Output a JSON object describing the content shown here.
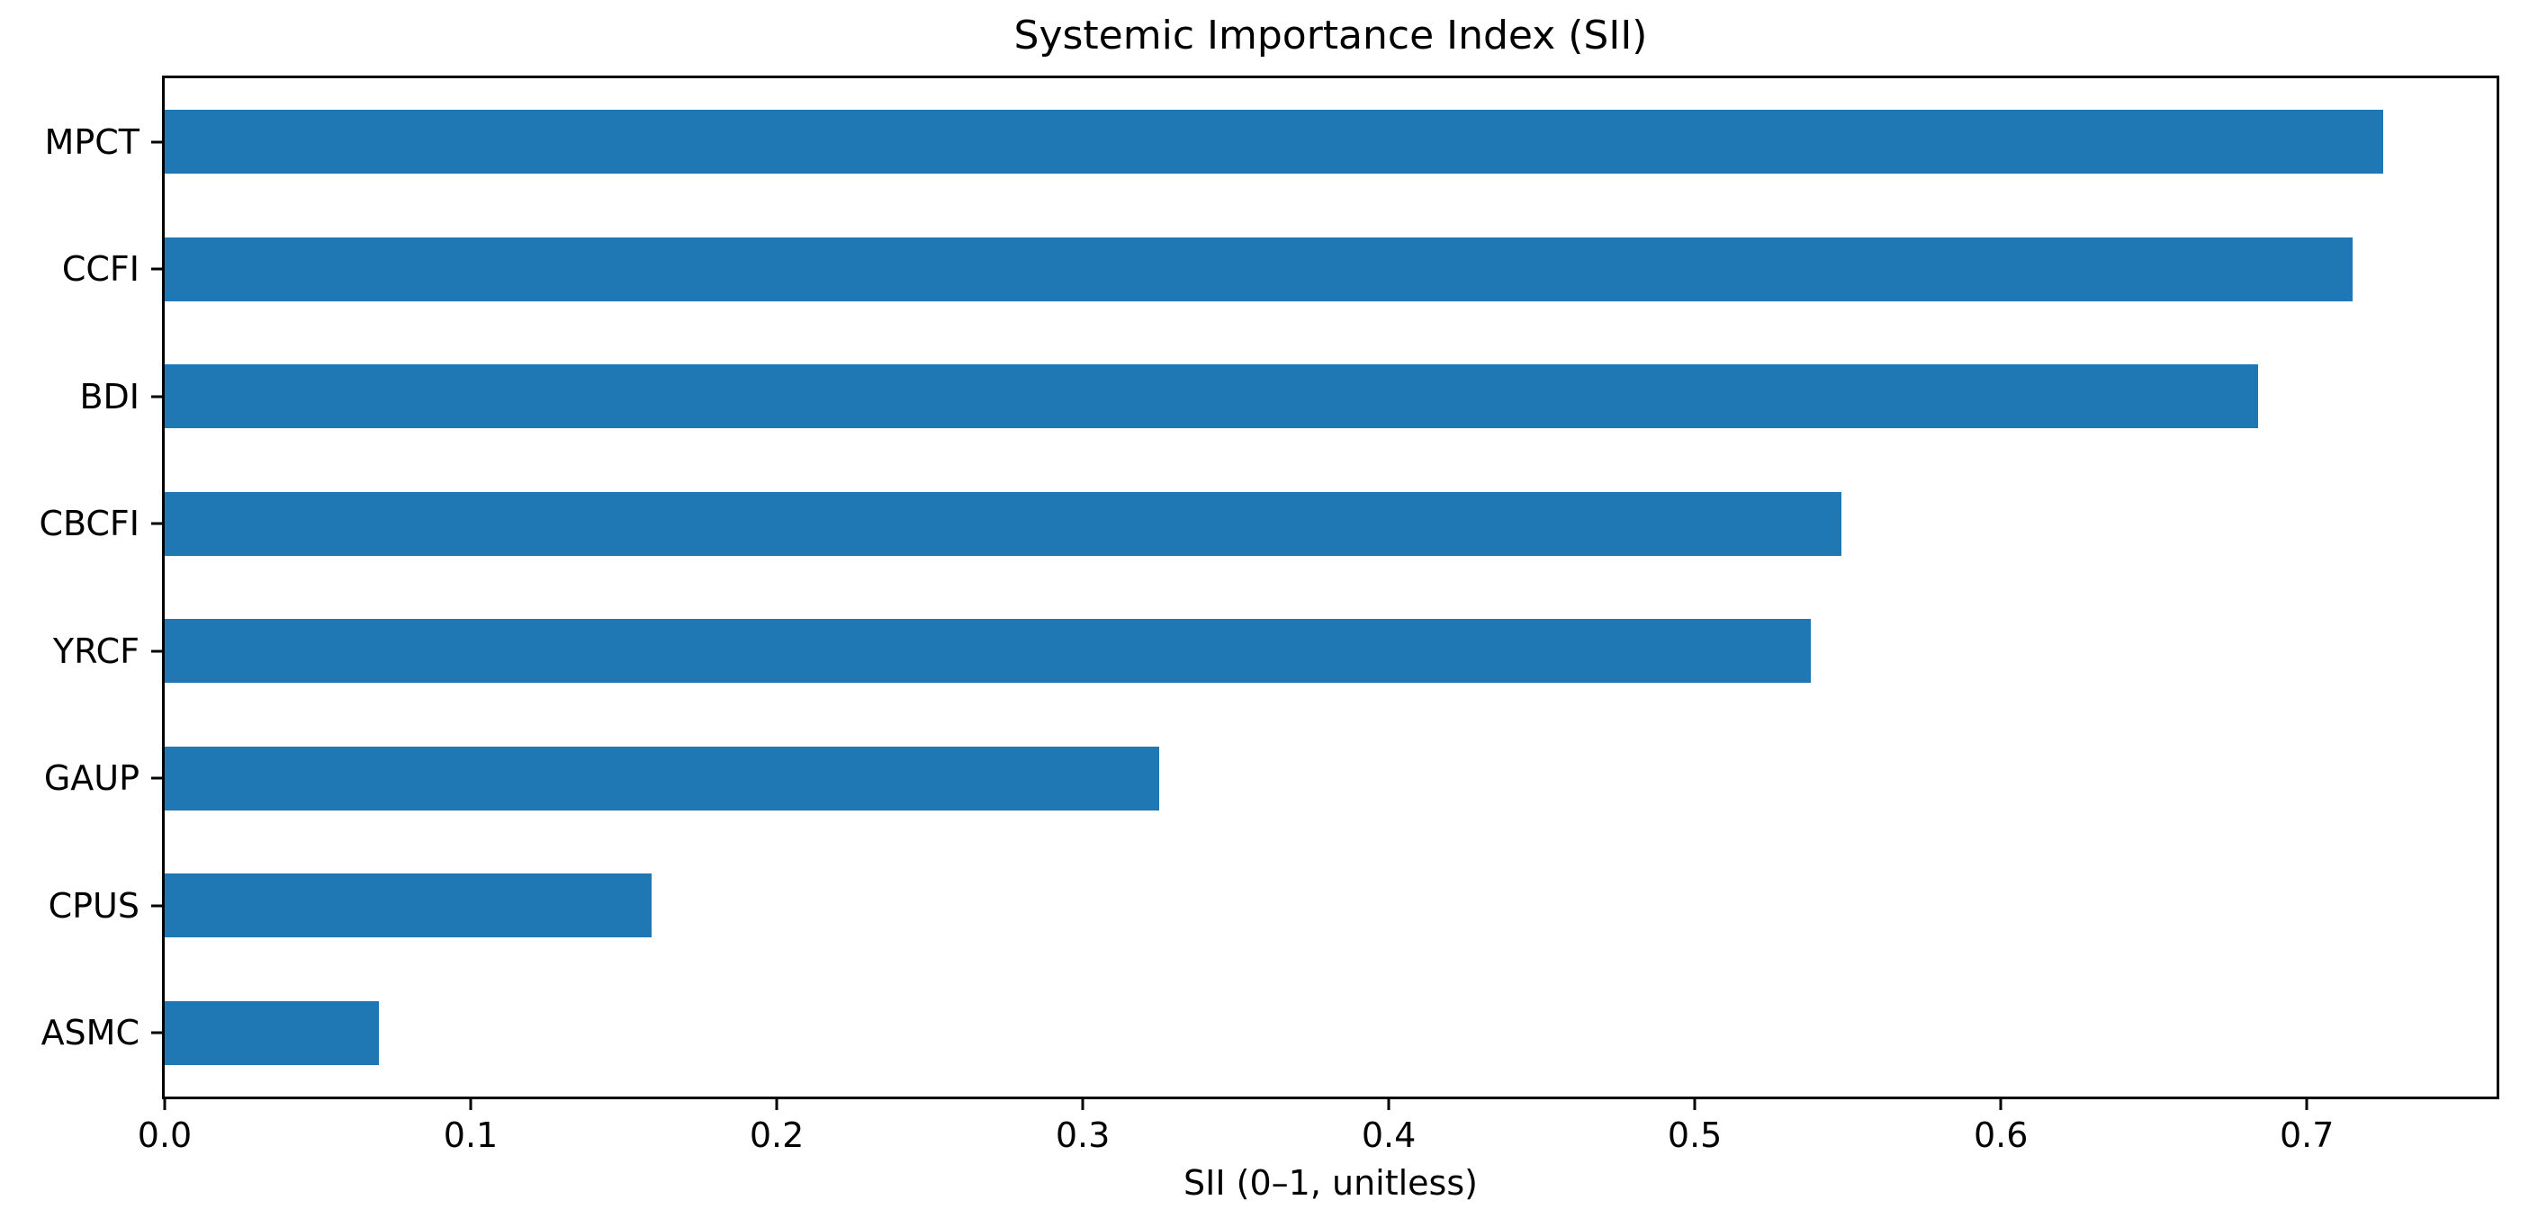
{
  "chart_data": {
    "type": "bar",
    "orientation": "horizontal",
    "title": "Systemic Importance Index (SII)",
    "xlabel": "SII (0–1, unitless)",
    "ylabel": "",
    "categories": [
      "MPCT",
      "CCFI",
      "BDI",
      "CBCFI",
      "YRCF",
      "GAUP",
      "CPUS",
      "ASMC"
    ],
    "values": [
      0.725,
      0.715,
      0.684,
      0.548,
      0.538,
      0.325,
      0.159,
      0.07
    ],
    "xlim": [
      0,
      0.762
    ],
    "x_tick_values": [
      0.0,
      0.1,
      0.2,
      0.3,
      0.4,
      0.5,
      0.6,
      0.7
    ],
    "x_tick_labels": [
      "0.0",
      "0.1",
      "0.2",
      "0.3",
      "0.4",
      "0.5",
      "0.6",
      "0.7"
    ],
    "bar_color": "#1f77b4",
    "axis_color": "#000000",
    "background_color": "#ffffff",
    "grid": false,
    "legend": null,
    "bar_height_fraction": 0.5
  }
}
